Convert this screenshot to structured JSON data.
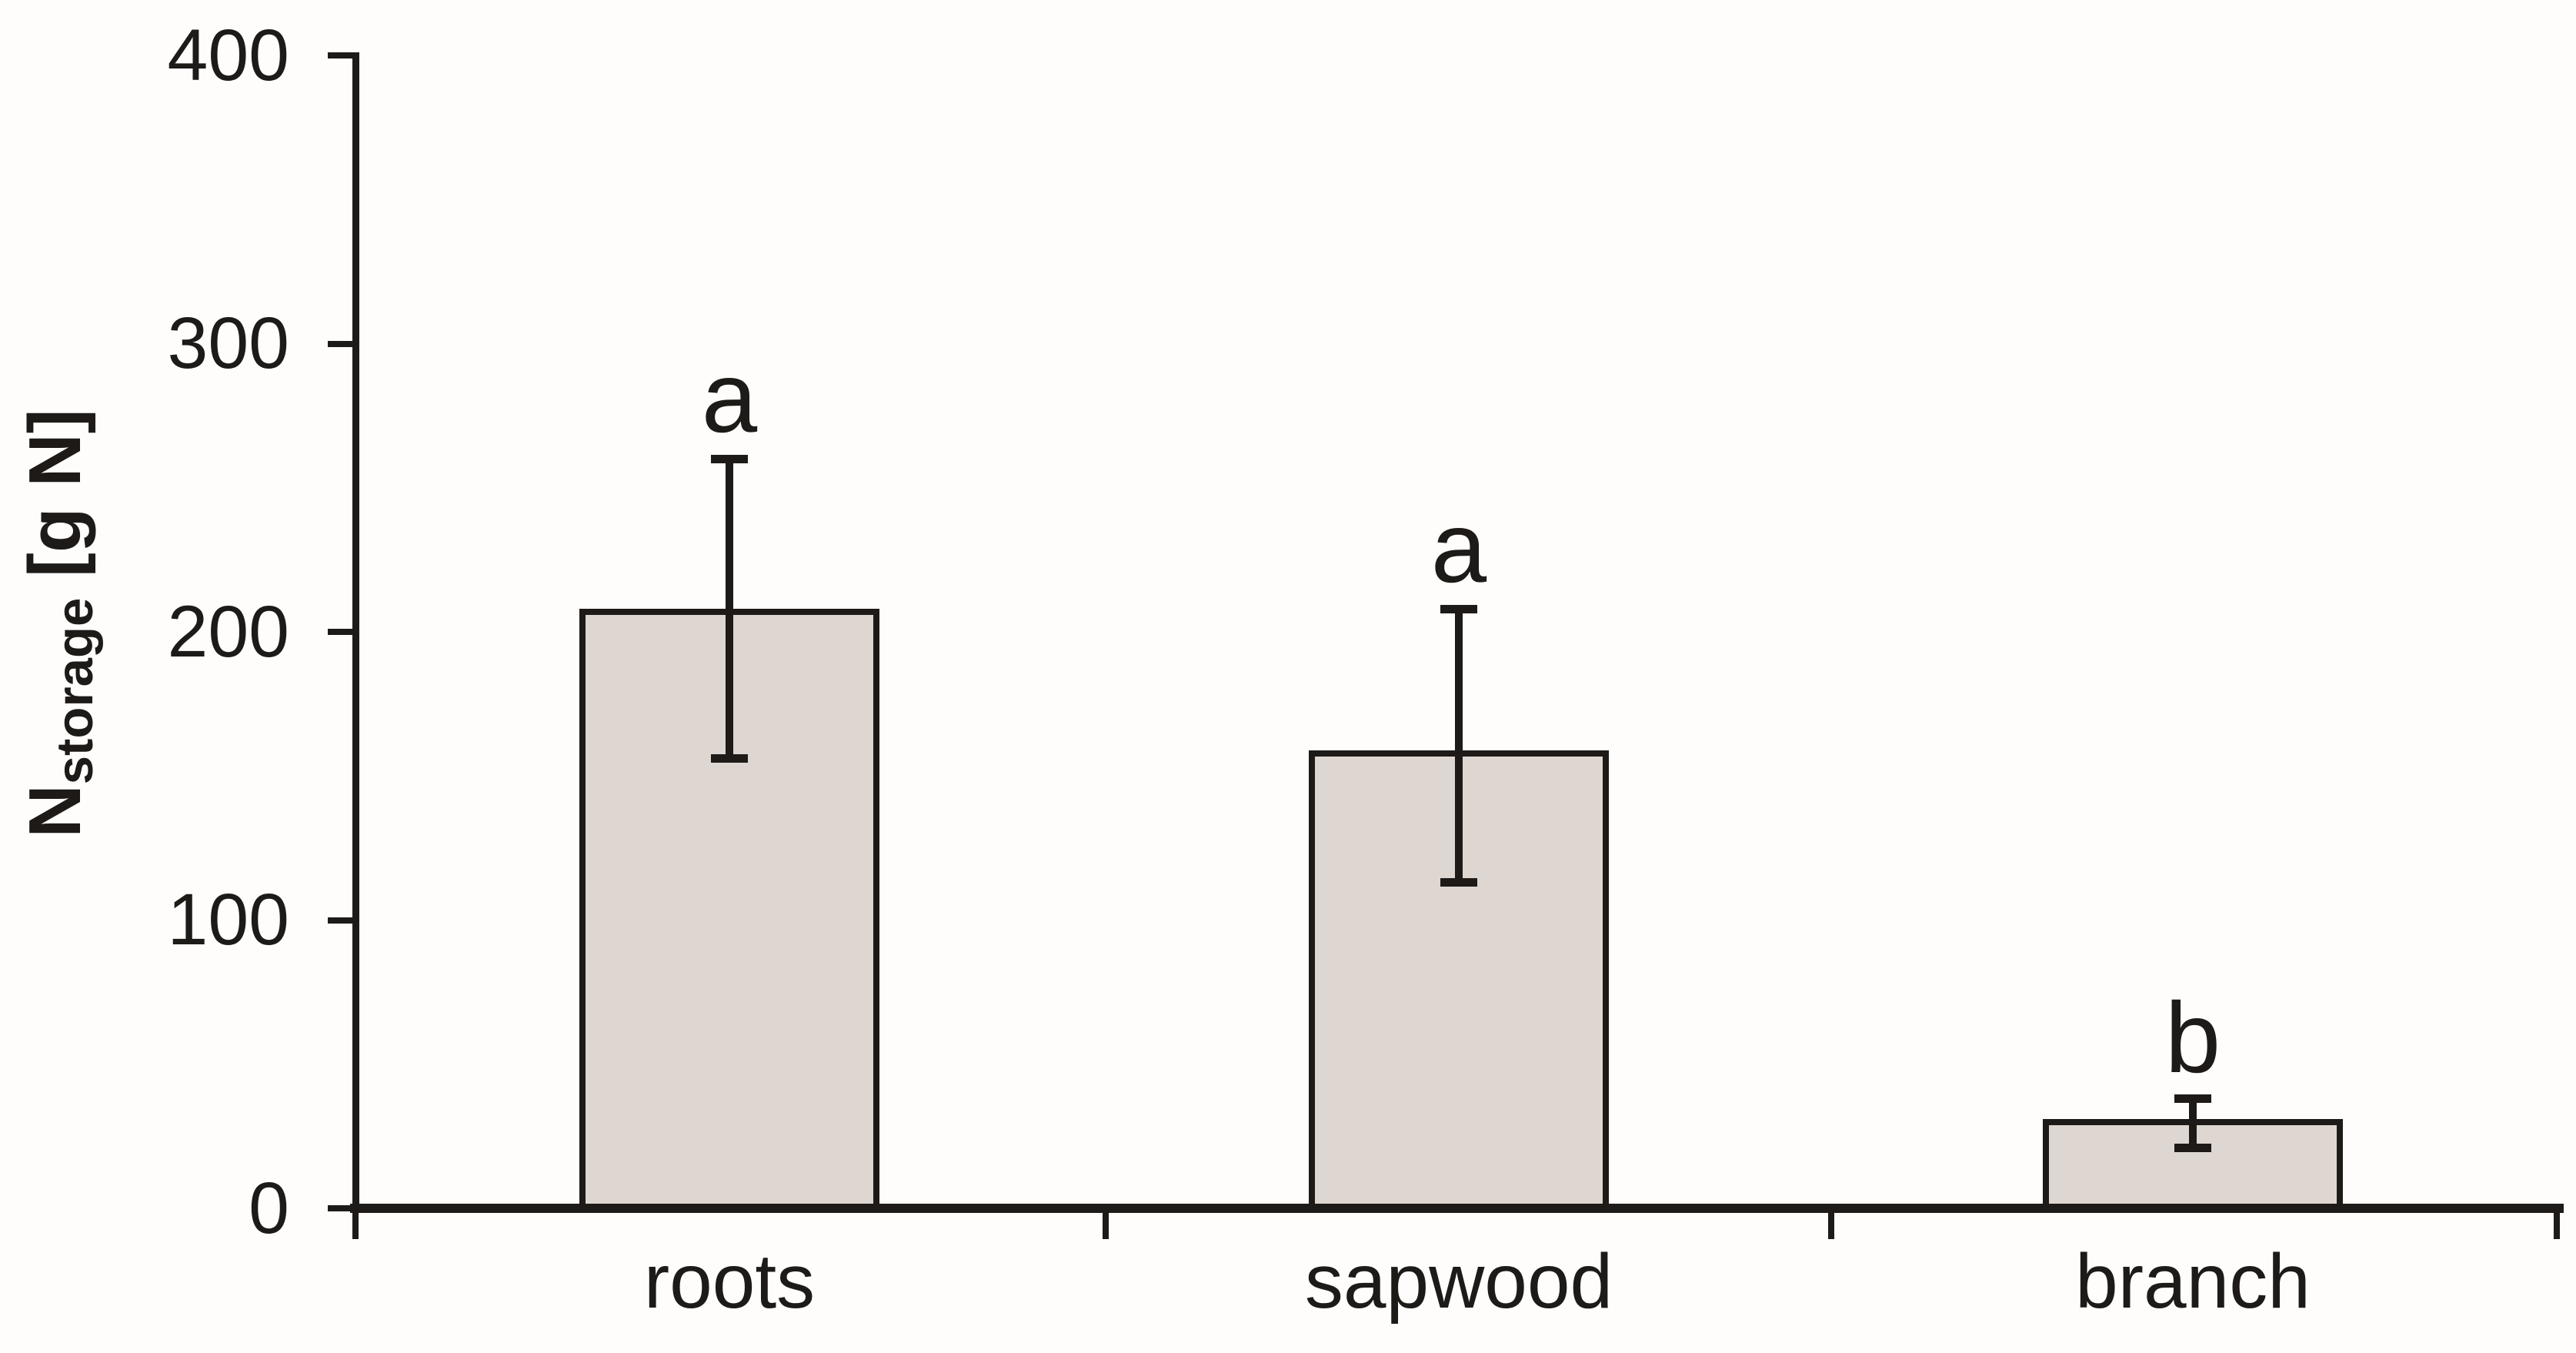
{
  "figure": {
    "background": "#fefdfb",
    "ink": "#1d1a17"
  },
  "chart_data": {
    "type": "bar",
    "ylabel": {
      "base": "N",
      "subscript": "storage",
      "unit": "[g N]"
    },
    "ylabel_plain": "Nstorage [g N]",
    "categories": [
      "roots",
      "sapwood",
      "branch"
    ],
    "values": [
      208,
      159,
      31
    ],
    "error_low": [
      156,
      113,
      21
    ],
    "error_high": [
      260,
      208,
      38
    ],
    "sig_letters": [
      "a",
      "a",
      "b"
    ],
    "ylim": [
      0,
      400
    ],
    "yticks": [
      0,
      100,
      200,
      300,
      400
    ],
    "grid": false,
    "legend": "none",
    "bar_fill": "#ded7d1",
    "bar_border": "#1d1a17"
  }
}
